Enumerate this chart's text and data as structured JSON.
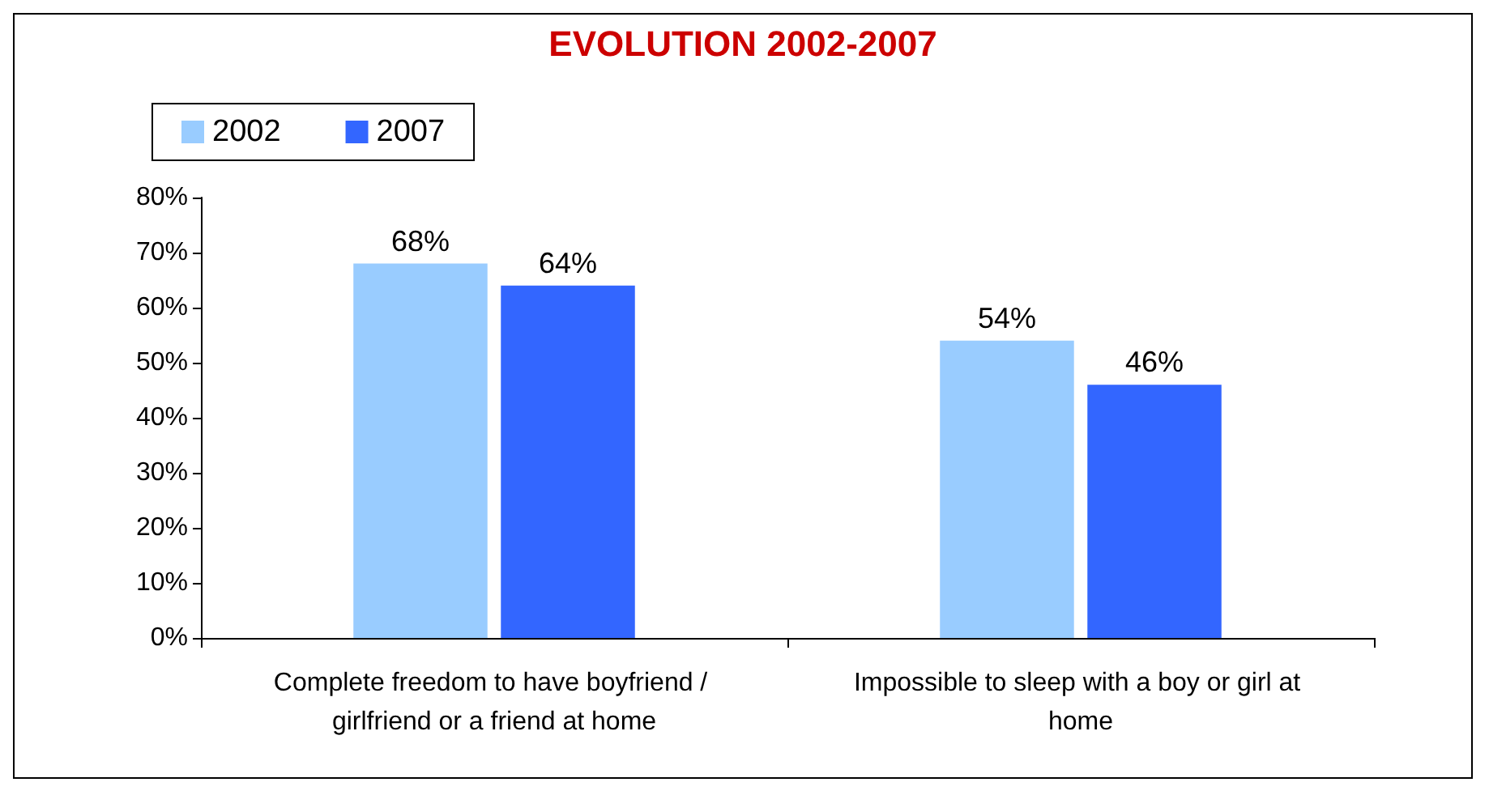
{
  "chart_data": {
    "type": "bar",
    "title": "EVOLUTION 2002-2007",
    "categories": [
      "Complete freedom to have boyfriend / girlfriend or a friend at home",
      "Impossible to sleep with a boy or girl at home"
    ],
    "series": [
      {
        "name": "2002",
        "color": "#99ccff",
        "values": [
          68,
          54
        ],
        "value_labels": [
          "68%",
          "54%"
        ]
      },
      {
        "name": "2007",
        "color": "#3366ff",
        "values": [
          64,
          46
        ],
        "value_labels": [
          "64%",
          "46%"
        ]
      }
    ],
    "ylim": [
      0,
      80
    ],
    "yticks": [
      {
        "value": 0,
        "label": "0%"
      },
      {
        "value": 10,
        "label": "10%"
      },
      {
        "value": 20,
        "label": "20%"
      },
      {
        "value": 30,
        "label": "30%"
      },
      {
        "value": 40,
        "label": "40%"
      },
      {
        "value": 50,
        "label": "50%"
      },
      {
        "value": 60,
        "label": "60%"
      },
      {
        "value": 70,
        "label": "70%"
      },
      {
        "value": 80,
        "label": "80%"
      }
    ],
    "grid": false,
    "legend": "top left"
  }
}
